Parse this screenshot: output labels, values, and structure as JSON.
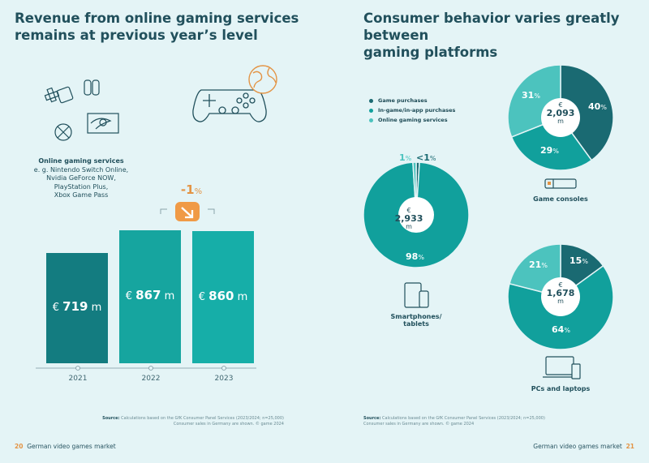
{
  "left": {
    "title_line1": "Revenue from online gaming services",
    "title_line2": "remains at previous year’s level",
    "service_title": "Online gaming services",
    "service_lines": [
      "e. g. Nintendo Switch Online,",
      "Nvidia GeForce NOW,",
      "PlayStation Plus,",
      "Xbox Game Pass"
    ],
    "change_value": "-1",
    "change_unit": "%",
    "source_label": "Source:",
    "source_line1": "Calculations based on the GfK Consumer Panel Services (2023/2024; n=25,000)",
    "source_line2": "Consumer sales in Germany are shown. © game 2024",
    "page_number": "20",
    "page_title": "German video games market"
  },
  "right": {
    "title_line1": "Consumer behavior varies greatly between",
    "title_line2": "gaming platforms",
    "legend": [
      {
        "label": "Game purchases",
        "color": "#1a6a72"
      },
      {
        "label": "In-game/in-app purchases",
        "color": "#11a09c"
      },
      {
        "label": "Online gaming services",
        "color": "#4cc3be"
      }
    ],
    "source_label": "Source:",
    "source_line1": "Calculations based on the GfK Consumer Panel Services (2023/2024; n=25,000)",
    "source_line2": "Consumer sales in Germany are shown. © game 2024",
    "page_number": "21",
    "page_title": "German video games market"
  },
  "chart_data": [
    {
      "type": "bar",
      "categories": [
        "2021",
        "2022",
        "2023"
      ],
      "values": [
        719,
        867,
        860
      ],
      "currency": "€",
      "unit": "m",
      "colors": [
        "#137c80",
        "#16a59f",
        "#16aea8"
      ]
    },
    {
      "type": "pie",
      "category": "Smartphones/\ntablets",
      "total": "2,933",
      "currency": "€",
      "unit": "m",
      "labels": [
        "Game purchases",
        "In-game/in-app purchases",
        "Online gaming services"
      ],
      "values": [
        1,
        98,
        1
      ],
      "display": [
        "<1",
        "98",
        "1"
      ]
    },
    {
      "type": "pie",
      "category": "Game consoles",
      "total": "2,093",
      "currency": "€",
      "unit": "m",
      "labels": [
        "Game purchases",
        "In-game/in-app purchases",
        "Online gaming services"
      ],
      "values": [
        40,
        29,
        31
      ],
      "display": [
        "40",
        "29",
        "31"
      ]
    },
    {
      "type": "pie",
      "category": "PCs and laptops",
      "total": "1,678",
      "currency": "€",
      "unit": "m",
      "labels": [
        "Game purchases",
        "In-game/in-app purchases",
        "Online gaming services"
      ],
      "values": [
        15,
        64,
        21
      ],
      "display": [
        "15",
        "64",
        "21"
      ]
    }
  ]
}
